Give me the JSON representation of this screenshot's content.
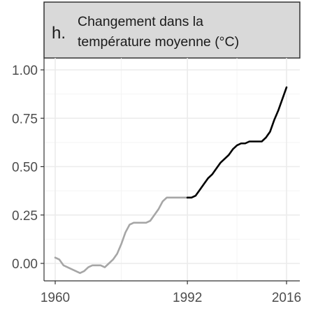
{
  "panel": {
    "letter": "h.",
    "title_line1": "Changement dans la",
    "title_line2": "température moyenne (°C)"
  },
  "chart_data": {
    "type": "line",
    "title": "Changement dans la température moyenne (°C)",
    "xlabel": "",
    "ylabel": "",
    "xlim": [
      1960,
      2016
    ],
    "ylim": [
      -0.05,
      1.0
    ],
    "x_ticks": [
      1960,
      1992,
      2016
    ],
    "x_tick_labels": [
      "1960",
      "1992",
      "2016"
    ],
    "y_ticks": [
      0,
      0.25,
      0.5,
      0.75,
      1.0
    ],
    "y_tick_labels": [
      "0.00",
      "0.25",
      "0.50",
      "0.75",
      "1.00"
    ],
    "grid": true,
    "legend": "none",
    "series": [
      {
        "color": "#a6a6a6",
        "x": [
          1960,
          1961,
          1962,
          1963,
          1964,
          1965,
          1966,
          1967,
          1968,
          1969,
          1970,
          1971,
          1972,
          1973,
          1974,
          1975,
          1976,
          1977,
          1978,
          1979,
          1980,
          1981,
          1982,
          1983,
          1984,
          1985,
          1986,
          1987,
          1988,
          1989,
          1990,
          1991,
          1992
        ],
        "y": [
          0.03,
          0.02,
          -0.01,
          -0.02,
          -0.03,
          -0.04,
          -0.05,
          -0.04,
          -0.02,
          -0.01,
          -0.01,
          -0.01,
          -0.02,
          0.0,
          0.02,
          0.05,
          0.1,
          0.16,
          0.2,
          0.21,
          0.21,
          0.21,
          0.21,
          0.22,
          0.25,
          0.28,
          0.32,
          0.34,
          0.34,
          0.34,
          0.34,
          0.34,
          0.34
        ]
      },
      {
        "color": "#000000",
        "x": [
          1992,
          1993,
          1994,
          1995,
          1996,
          1997,
          1998,
          1999,
          2000,
          2001,
          2002,
          2003,
          2004,
          2005,
          2006,
          2007,
          2008,
          2009,
          2010,
          2011,
          2012,
          2013,
          2014,
          2015,
          2016
        ],
        "y": [
          0.34,
          0.34,
          0.35,
          0.38,
          0.41,
          0.44,
          0.46,
          0.49,
          0.52,
          0.54,
          0.56,
          0.59,
          0.61,
          0.62,
          0.62,
          0.63,
          0.63,
          0.63,
          0.63,
          0.65,
          0.68,
          0.74,
          0.79,
          0.85,
          0.91
        ]
      }
    ]
  },
  "colors": {
    "strip_fill": "#d9d9d9",
    "strip_border": "#333333",
    "grid_major": "#ebebeb",
    "grid_minor": "#f4f4f4",
    "axis_text": "#4d4d4d"
  }
}
